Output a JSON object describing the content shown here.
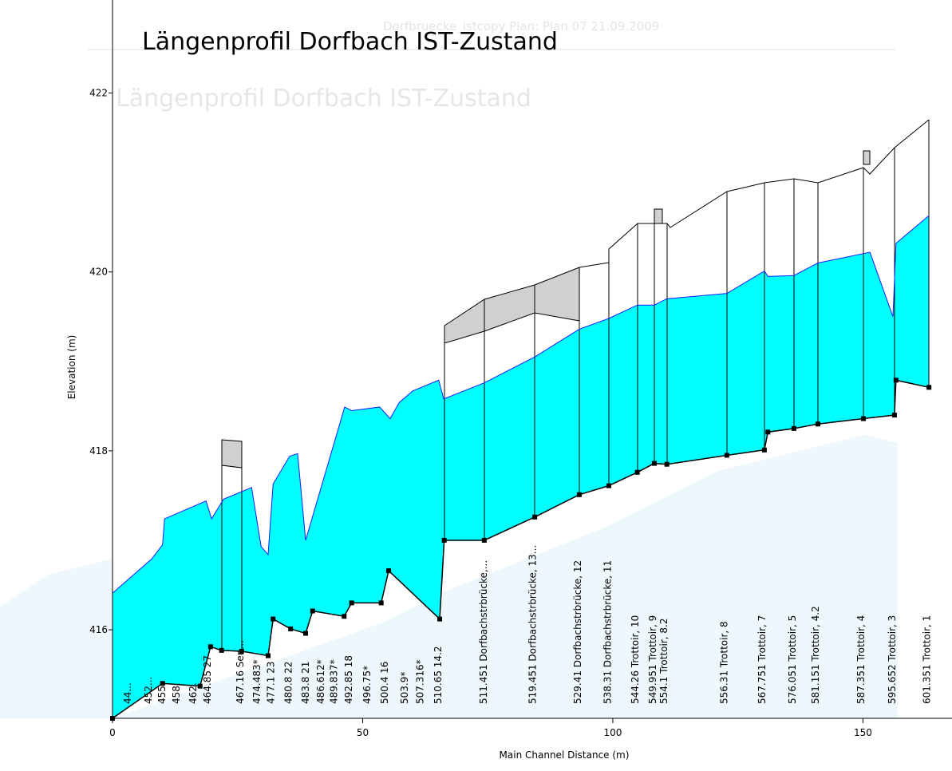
{
  "chart_data": {
    "type": "profile",
    "header": "Dorfbruecke_istcopy      Plan: Plan 07    21.09.2009",
    "title": "Längenprofil Dorfbach IST-Zustand",
    "ghost_title": "Längenprofil Dorfbach IST-Zustand",
    "xlabel": "Main Channel Distance (m)",
    "ylabel": "Elevation (m)",
    "xlim": [
      0,
      167.8
    ],
    "ylim": [
      415.01,
      423.04
    ],
    "xticks": [
      0,
      50,
      100,
      150
    ],
    "yticks": [
      416,
      418,
      420,
      422
    ],
    "series": [
      {
        "color": "#1a1aff",
        "fill": "#00ffff",
        "x": [
          0,
          7.8,
          10.0,
          10.4,
          18.7,
          19.8,
          22.2,
          27.8,
          29.7,
          31.1,
          32.1,
          35.4,
          37.0,
          38.6,
          46.4,
          47.8,
          53.4,
          55.5,
          57.3,
          60.0,
          65.2,
          66.2,
          74.3,
          84.4,
          93.3,
          99.2,
          104.9,
          108.3,
          110.8,
          122.8,
          130.3,
          131.0,
          136.2,
          141.0,
          151.4,
          156.0,
          156.6,
          163.2
        ],
        "values": [
          416.41,
          416.79,
          416.95,
          417.24,
          417.44,
          417.24,
          417.46,
          417.59,
          416.93,
          416.84,
          417.63,
          417.94,
          417.97,
          417.0,
          418.49,
          418.45,
          418.49,
          418.36,
          418.54,
          418.67,
          418.79,
          418.58,
          418.76,
          419.05,
          419.36,
          419.48,
          419.63,
          419.63,
          419.7,
          419.76,
          420.01,
          419.95,
          419.96,
          420.1,
          420.22,
          419.5,
          420.32,
          420.63
        ]
      },
      {
        "color": "#000000",
        "x": [
          0,
          10.0,
          17.5,
          19.6,
          21.8,
          25.8,
          31.1,
          32.1,
          35.6,
          38.6,
          40.0,
          46.3,
          47.8,
          53.7,
          55.2,
          65.4,
          66.3,
          74.3,
          84.4,
          93.3,
          99.2,
          104.9,
          108.3,
          110.8,
          122.8,
          130.3,
          131.0,
          136.2,
          141.0,
          150.1,
          156.3,
          156.6,
          163.2
        ],
        "values": [
          415.01,
          415.4,
          415.37,
          415.81,
          415.77,
          415.76,
          415.71,
          416.12,
          416.01,
          415.96,
          416.21,
          416.15,
          416.3,
          416.3,
          416.66,
          416.12,
          417.0,
          417.0,
          417.26,
          417.51,
          417.61,
          417.76,
          417.86,
          417.85,
          417.95,
          418.01,
          418.21,
          418.25,
          418.3,
          418.36,
          418.4,
          418.79,
          418.71
        ]
      }
    ],
    "stations": [
      {
        "x": 3.0,
        "label": "44..."
      },
      {
        "x": 7.2,
        "label": "452..."
      },
      {
        "x": 9.9,
        "label": "455."
      },
      {
        "x": 12.8,
        "label": "458."
      },
      {
        "x": 16.1,
        "label": "462."
      },
      {
        "x": 19.0,
        "label": "464.85 27"
      },
      {
        "x": 25.5,
        "label": "467.16 Sen..."
      },
      {
        "x": 28.9,
        "label": "474.483*"
      },
      {
        "x": 31.7,
        "label": "477.1 23"
      },
      {
        "x": 35.2,
        "label": "480.8 22"
      },
      {
        "x": 38.6,
        "label": "483.8 21"
      },
      {
        "x": 41.6,
        "label": "486.612*"
      },
      {
        "x": 44.3,
        "label": "489.837*"
      },
      {
        "x": 47.2,
        "label": "492.85 18"
      },
      {
        "x": 50.9,
        "label": "496.75*"
      },
      {
        "x": 54.4,
        "label": "500.4 16"
      },
      {
        "x": 58.4,
        "label": "503.9*"
      },
      {
        "x": 61.5,
        "label": "507.316*"
      },
      {
        "x": 65.1,
        "label": "510.65 14.2"
      },
      {
        "x": 74.2,
        "label": "511.451 Dorfbachstrbrücke,..."
      },
      {
        "x": 84.0,
        "label": "519.451 Dorfbachstrbrücke, 13..."
      },
      {
        "x": 93.0,
        "label": "529.41 Dorfbachstrbrücke, 12"
      },
      {
        "x": 99.0,
        "label": "538.31 Dorfbachstrbrücke, 11"
      },
      {
        "x": 104.5,
        "label": "544.26 Trottoir, 10"
      },
      {
        "x": 108.0,
        "label": "549.951 Trottoir, 9"
      },
      {
        "x": 110.2,
        "label": "554.1 Trottoir, 8.2"
      },
      {
        "x": 122.3,
        "label": "556.31 Trottoir, 8"
      },
      {
        "x": 129.8,
        "label": "567.751 Trottoir, 7"
      },
      {
        "x": 135.9,
        "label": "576.051 Trottoir, 5"
      },
      {
        "x": 140.5,
        "label": "581.151 Trottoir, 4.2"
      },
      {
        "x": 149.6,
        "label": "587.351 Trottoir, 4"
      },
      {
        "x": 155.8,
        "label": "595.652 Trottoir, 3"
      },
      {
        "x": 162.8,
        "label": "601.351 Trottoir, 1"
      }
    ]
  }
}
